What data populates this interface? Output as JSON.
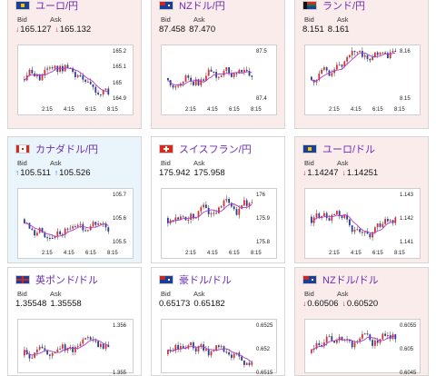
{
  "labels": {
    "bid": "Bid",
    "ask": "Ask"
  },
  "colors": {
    "up_bg": "#eaf4fb",
    "down_bg": "#fbecec",
    "candle_up": "#d33333",
    "candle_down": "#2c3e99",
    "ma": "#b238c9",
    "title": "#6b2db0"
  },
  "pairs": [
    {
      "name": "ユーロ/円",
      "flag": "eu-flag",
      "bid": "165.127",
      "ask": "165.132",
      "dir": "down",
      "show_arrows": true,
      "yticks": [
        "165.2",
        "165.1",
        "165",
        "164.9"
      ],
      "xticks": [
        "2:15",
        "4:15",
        "6:15",
        "8:15"
      ]
    },
    {
      "name": "NZドル/円",
      "flag": "nz-flag",
      "bid": "87.458",
      "ask": "87.470",
      "dir": "down",
      "show_arrows": false,
      "yticks": [
        "87.5",
        "87.4"
      ],
      "xticks": [
        "2:15",
        "4:15",
        "6:15",
        "8:15"
      ]
    },
    {
      "name": "ランド/円",
      "flag": "za-flag",
      "bid": "8.151",
      "ask": "8.161",
      "dir": "down",
      "show_arrows": false,
      "yticks": [
        "8.16",
        "8.15"
      ],
      "xticks": [
        "2:15",
        "4:15",
        "6:15",
        "8:15"
      ]
    },
    {
      "name": "カナダドル/円",
      "flag": "ca-flag",
      "bid": "105.511",
      "ask": "105.526",
      "dir": "up",
      "show_arrows": true,
      "yticks": [
        "105.7",
        "105.6",
        "105.5"
      ],
      "xticks": [
        "2:15",
        "4:15",
        "6:15",
        "8:15"
      ]
    },
    {
      "name": "スイスフラン/円",
      "flag": "ch-flag",
      "bid": "175.942",
      "ask": "175.958",
      "dir": "flat",
      "show_arrows": false,
      "yticks": [
        "176",
        "175.9",
        "175.8"
      ],
      "xticks": [
        "2:15",
        "4:15",
        "6:15",
        "8:15"
      ]
    },
    {
      "name": "ユーロ/ドル",
      "flag": "eu-flag",
      "bid": "1.14247",
      "ask": "1.14251",
      "dir": "down",
      "show_arrows": true,
      "yticks": [
        "1.143",
        "1.142",
        "1.141"
      ],
      "xticks": [
        "2:15",
        "4:15",
        "6:15",
        "8:15"
      ]
    },
    {
      "name": "英ポンド/ドル",
      "flag": "gb-flag",
      "bid": "1.35548",
      "ask": "1.35558",
      "dir": "flat",
      "show_arrows": false,
      "yticks": [
        "1.356",
        "1.355"
      ],
      "xticks": []
    },
    {
      "name": "豪ドル/ドル",
      "flag": "au-flag",
      "bid": "0.65173",
      "ask": "0.65182",
      "dir": "flat",
      "show_arrows": false,
      "yticks": [
        "0.6525",
        "0.652",
        "0.6515"
      ],
      "xticks": []
    },
    {
      "name": "NZドル/ドル",
      "flag": "nz-flag",
      "bid": "0.60506",
      "ask": "0.60520",
      "dir": "down",
      "show_arrows": true,
      "yticks": [
        "0.6055",
        "0.605",
        "0.6045"
      ],
      "xticks": []
    }
  ]
}
